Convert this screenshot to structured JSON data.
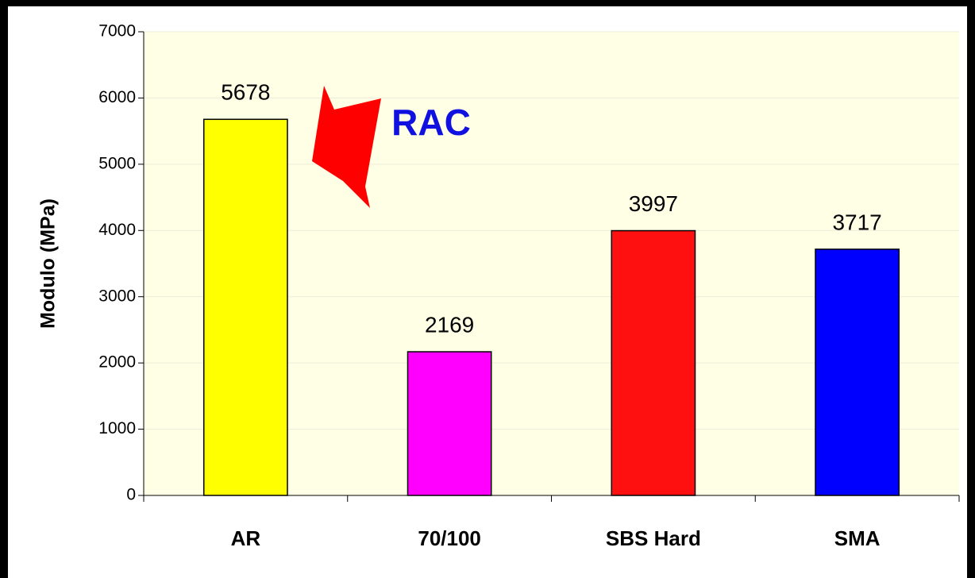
{
  "chart_data": {
    "type": "bar",
    "y_label": "Modulo (MPa)",
    "annotation": "RAC",
    "categories": [
      "AR",
      "70/100",
      "SBS Hard",
      "SMA"
    ],
    "values": [
      5678,
      2169,
      3997,
      3717
    ],
    "colors": [
      "#ffff00",
      "#ff00ff",
      "#ff1010",
      "#0000ff"
    ],
    "ylim": [
      0,
      7000
    ],
    "yticks": [
      0,
      1000,
      2000,
      3000,
      4000,
      5000,
      6000,
      7000
    ],
    "grid": true
  }
}
